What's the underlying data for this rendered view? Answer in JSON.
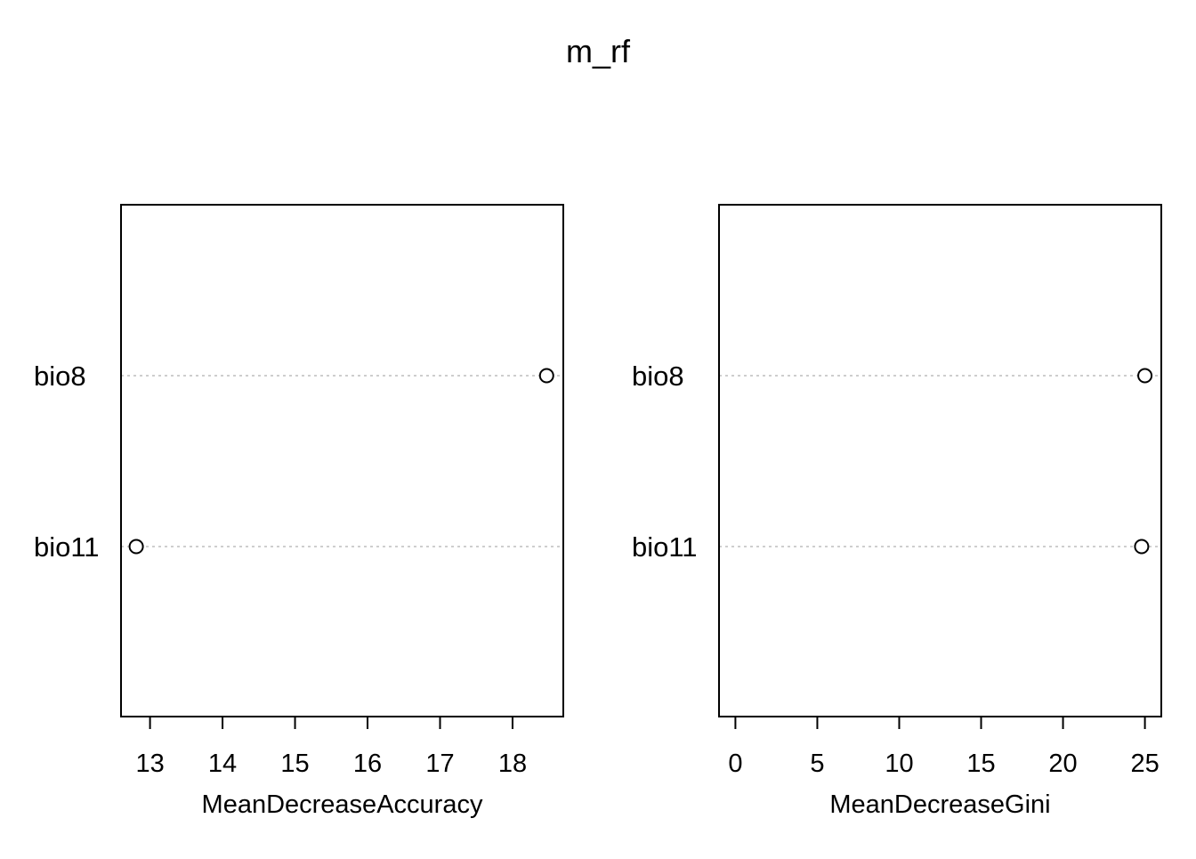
{
  "chart_data": {
    "title": "m_rf",
    "colors": {
      "frame": "#000000",
      "guide_line": "#bebebe",
      "point_stroke": "#000000",
      "point_fill": "#ffffff"
    },
    "panels": [
      {
        "type": "scatter",
        "style": "dotchart",
        "categories": [
          "bio8",
          "bio11"
        ],
        "values": [
          18.47,
          12.81
        ],
        "xlabel": "MeanDecreaseAccuracy",
        "xlim": [
          12.6,
          18.7
        ],
        "xticks": [
          13,
          14,
          15,
          16,
          17,
          18
        ],
        "grid": "dotted category guides"
      },
      {
        "type": "scatter",
        "style": "dotchart",
        "categories": [
          "bio8",
          "bio11"
        ],
        "values": [
          25.0,
          24.8
        ],
        "xlabel": "MeanDecreaseGini",
        "xlim": [
          -1.0,
          26.0
        ],
        "xticks": [
          0,
          5,
          10,
          15,
          20,
          25
        ],
        "grid": "dotted category guides"
      }
    ]
  }
}
